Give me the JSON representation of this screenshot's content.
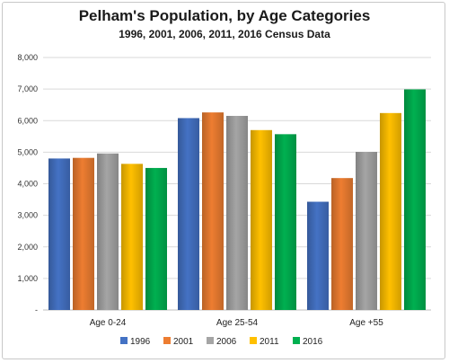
{
  "chart_data": {
    "type": "bar",
    "title": "Pelham's Population, by Age Categories",
    "subtitle": "1996, 2001, 2006, 2011, 2016 Census Data",
    "categories": [
      "Age 0-24",
      "Age 25-54",
      "Age +55"
    ],
    "series": [
      {
        "name": "1996",
        "color": "#4472c4",
        "values": [
          4800,
          6080,
          3430
        ]
      },
      {
        "name": "2001",
        "color": "#ed7d31",
        "values": [
          4820,
          6260,
          4180
        ]
      },
      {
        "name": "2006",
        "color": "#a5a5a5",
        "values": [
          4960,
          6150,
          5010
        ]
      },
      {
        "name": "2011",
        "color": "#ffc000",
        "values": [
          4630,
          5700,
          6240
        ]
      },
      {
        "name": "2016",
        "color": "#00b050",
        "values": [
          4500,
          5570,
          6990
        ]
      }
    ],
    "ylim": [
      0,
      8000
    ],
    "yticks": [
      0,
      1000,
      2000,
      3000,
      4000,
      5000,
      6000,
      7000,
      8000
    ],
    "ytick_labels": [
      "-",
      "1,000",
      "2,000",
      "3,000",
      "4,000",
      "5,000",
      "6,000",
      "7,000",
      "8,000"
    ],
    "xlabel": "",
    "ylabel": "",
    "grid": true,
    "legend": "bottom"
  }
}
